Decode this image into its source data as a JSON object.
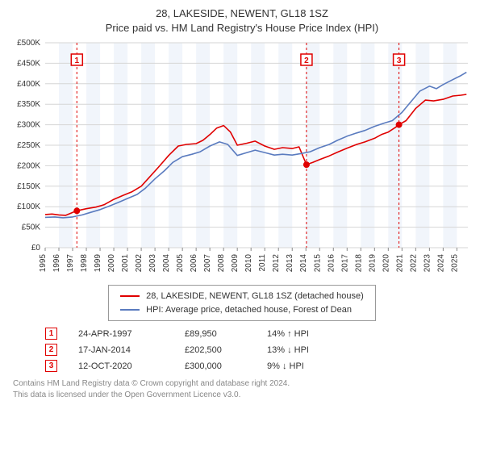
{
  "title_line1": "28, LAKESIDE, NEWENT, GL18 1SZ",
  "title_line2": "Price paid vs. HM Land Registry's House Price Index (HPI)",
  "chart": {
    "type": "line",
    "background_color": "#ffffff",
    "shaded_color": "#f1f5fb",
    "grid_color": "#d6d6d6",
    "line_width": 1.6,
    "x_range": [
      1995,
      2025.8
    ],
    "y_range": [
      0,
      500000
    ],
    "ytick_step": 50000,
    "ytick_labels": [
      "£0",
      "£50K",
      "£100K",
      "£150K",
      "£200K",
      "£250K",
      "£300K",
      "£350K",
      "£400K",
      "£450K",
      "£500K"
    ],
    "xticks": [
      1995,
      1996,
      1997,
      1998,
      1999,
      2000,
      2001,
      2002,
      2003,
      2004,
      2005,
      2006,
      2007,
      2008,
      2009,
      2010,
      2011,
      2012,
      2013,
      2014,
      2015,
      2016,
      2017,
      2018,
      2019,
      2020,
      2021,
      2022,
      2023,
      2024,
      2025
    ],
    "marker_line_color": "#e00000",
    "marker_line_dash": "3,3",
    "series": [
      {
        "name": "28, LAKESIDE, NEWENT, GL18 1SZ (detached house)",
        "color": "#e00000",
        "points": [
          [
            1995,
            81000
          ],
          [
            1995.5,
            82000
          ],
          [
            1996,
            80000
          ],
          [
            1996.5,
            79000
          ],
          [
            1997.3,
            89950
          ],
          [
            1998,
            95000
          ],
          [
            1998.7,
            99000
          ],
          [
            1999.3,
            105000
          ],
          [
            2000,
            118000
          ],
          [
            2000.7,
            128000
          ],
          [
            2001.3,
            136000
          ],
          [
            2002,
            150000
          ],
          [
            2002.6,
            172000
          ],
          [
            2003.3,
            198000
          ],
          [
            2004,
            225000
          ],
          [
            2004.7,
            248000
          ],
          [
            2005.3,
            252000
          ],
          [
            2006,
            254000
          ],
          [
            2006.5,
            262000
          ],
          [
            2007,
            276000
          ],
          [
            2007.5,
            292000
          ],
          [
            2008,
            298000
          ],
          [
            2008.5,
            282000
          ],
          [
            2009,
            250000
          ],
          [
            2009.7,
            255000
          ],
          [
            2010.3,
            260000
          ],
          [
            2011,
            248000
          ],
          [
            2011.7,
            240000
          ],
          [
            2012.3,
            244000
          ],
          [
            2013,
            242000
          ],
          [
            2013.5,
            246000
          ],
          [
            2014.04,
            202500
          ],
          [
            2014.5,
            208000
          ],
          [
            2015,
            215000
          ],
          [
            2015.7,
            224000
          ],
          [
            2016.3,
            233000
          ],
          [
            2017,
            243000
          ],
          [
            2017.7,
            252000
          ],
          [
            2018.3,
            258000
          ],
          [
            2019,
            267000
          ],
          [
            2019.5,
            276000
          ],
          [
            2020,
            282000
          ],
          [
            2020.5,
            293000
          ],
          [
            2020.78,
            300000
          ],
          [
            2021.3,
            310000
          ],
          [
            2022,
            340000
          ],
          [
            2022.7,
            360000
          ],
          [
            2023.3,
            358000
          ],
          [
            2024,
            362000
          ],
          [
            2024.7,
            370000
          ],
          [
            2025.3,
            372000
          ],
          [
            2025.7,
            374000
          ]
        ]
      },
      {
        "name": "HPI: Average price, detached house, Forest of Dean",
        "color": "#5a7bbf",
        "points": [
          [
            1995,
            74000
          ],
          [
            1995.7,
            75000
          ],
          [
            1996.3,
            73000
          ],
          [
            1997,
            75000
          ],
          [
            1997.7,
            80000
          ],
          [
            1998.3,
            86000
          ],
          [
            1999,
            93000
          ],
          [
            1999.7,
            102000
          ],
          [
            2000.3,
            110000
          ],
          [
            2001,
            120000
          ],
          [
            2001.7,
            130000
          ],
          [
            2002.3,
            145000
          ],
          [
            2003,
            168000
          ],
          [
            2003.7,
            188000
          ],
          [
            2004.3,
            208000
          ],
          [
            2005,
            222000
          ],
          [
            2005.7,
            228000
          ],
          [
            2006.3,
            234000
          ],
          [
            2007,
            248000
          ],
          [
            2007.7,
            258000
          ],
          [
            2008.3,
            252000
          ],
          [
            2009,
            225000
          ],
          [
            2009.7,
            232000
          ],
          [
            2010.3,
            238000
          ],
          [
            2011,
            232000
          ],
          [
            2011.7,
            226000
          ],
          [
            2012.3,
            228000
          ],
          [
            2013,
            226000
          ],
          [
            2013.7,
            230000
          ],
          [
            2014.3,
            234000
          ],
          [
            2015,
            244000
          ],
          [
            2015.7,
            252000
          ],
          [
            2016.3,
            262000
          ],
          [
            2017,
            272000
          ],
          [
            2017.7,
            280000
          ],
          [
            2018.3,
            286000
          ],
          [
            2019,
            296000
          ],
          [
            2019.7,
            304000
          ],
          [
            2020.3,
            310000
          ],
          [
            2021,
            330000
          ],
          [
            2021.7,
            358000
          ],
          [
            2022.3,
            382000
          ],
          [
            2023,
            394000
          ],
          [
            2023.5,
            388000
          ],
          [
            2024,
            398000
          ],
          [
            2024.7,
            410000
          ],
          [
            2025.3,
            420000
          ],
          [
            2025.7,
            428000
          ]
        ]
      }
    ],
    "sale_markers": [
      {
        "n": "1",
        "year": 1997.31,
        "value": 89950
      },
      {
        "n": "2",
        "year": 2014.04,
        "value": 202500
      },
      {
        "n": "3",
        "year": 2020.78,
        "value": 300000
      }
    ]
  },
  "legend": {
    "items": [
      {
        "key": "series1_label",
        "color_key": "series1_color"
      },
      {
        "key": "series2_label",
        "color_key": "series2_color"
      }
    ],
    "series1_label": "28, LAKESIDE, NEWENT, GL18 1SZ (detached house)",
    "series1_color": "#e00000",
    "series2_label": "HPI: Average price, detached house, Forest of Dean",
    "series2_color": "#5a7bbf"
  },
  "sales_rows": [
    {
      "n": "1",
      "date": "24-APR-1997",
      "price": "£89,950",
      "diff": "14% ↑ HPI"
    },
    {
      "n": "2",
      "date": "17-JAN-2014",
      "price": "£202,500",
      "diff": "13% ↓ HPI"
    },
    {
      "n": "3",
      "date": "12-OCT-2020",
      "price": "£300,000",
      "diff": "9% ↓ HPI"
    }
  ],
  "credits_line1": "Contains HM Land Registry data © Crown copyright and database right 2024.",
  "credits_line2": "This data is licensed under the Open Government Licence v3.0."
}
